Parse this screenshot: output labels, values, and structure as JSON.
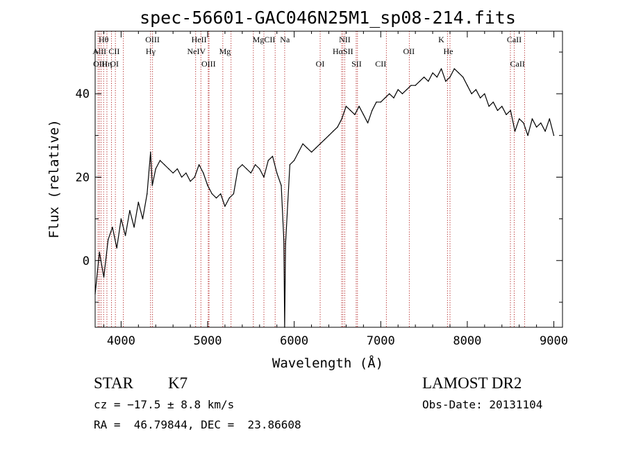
{
  "chart_data": {
    "type": "line",
    "title": "spec-56601-GAC046N25M1_sp08-214.fits",
    "xlabel": "Wavelength (Å)",
    "ylabel": "Flux (relative)",
    "xlim": [
      3700,
      9100
    ],
    "ylim": [
      -16,
      55
    ],
    "x_ticks": [
      4000,
      5000,
      6000,
      7000,
      8000,
      9000
    ],
    "y_ticks": [
      0,
      20,
      40
    ],
    "grid": false,
    "line_color": "#000000",
    "marker_color": "#b22222",
    "series": [
      {
        "x": [
          3700,
          3750,
          3800,
          3850,
          3900,
          3950,
          4000,
          4050,
          4100,
          4150,
          4200,
          4250,
          4300,
          4340,
          4360,
          4400,
          4450,
          4500,
          4550,
          4600,
          4650,
          4700,
          4750,
          4800,
          4850,
          4900,
          4950,
          5000,
          5050,
          5100,
          5150,
          5200,
          5250,
          5300,
          5350,
          5400,
          5450,
          5500,
          5550,
          5600,
          5650,
          5700,
          5750,
          5800,
          5850,
          5880,
          5890,
          5900,
          5950,
          6000,
          6050,
          6100,
          6150,
          6200,
          6250,
          6300,
          6350,
          6400,
          6450,
          6500,
          6550,
          6600,
          6650,
          6700,
          6750,
          6800,
          6850,
          6900,
          6950,
          7000,
          7050,
          7100,
          7150,
          7200,
          7250,
          7300,
          7350,
          7400,
          7450,
          7500,
          7550,
          7600,
          7650,
          7700,
          7750,
          7800,
          7850,
          7900,
          7950,
          8000,
          8050,
          8100,
          8150,
          8200,
          8250,
          8300,
          8350,
          8400,
          8450,
          8500,
          8550,
          8600,
          8650,
          8700,
          8750,
          8800,
          8850,
          8900,
          8950,
          9000
        ],
        "y": [
          -8,
          2,
          -4,
          5,
          8,
          3,
          10,
          6,
          12,
          8,
          14,
          10,
          16,
          26,
          18,
          22,
          24,
          23,
          22,
          21,
          22,
          20,
          21,
          19,
          20,
          23,
          21,
          18,
          16,
          15,
          16,
          13,
          15,
          16,
          22,
          23,
          22,
          21,
          23,
          22,
          20,
          24,
          25,
          21,
          18,
          5,
          -16,
          4,
          23,
          24,
          26,
          28,
          27,
          26,
          27,
          28,
          29,
          30,
          31,
          32,
          34,
          37,
          36,
          35,
          37,
          35,
          33,
          36,
          38,
          38,
          39,
          40,
          39,
          41,
          40,
          41,
          42,
          42,
          43,
          44,
          43,
          45,
          44,
          46,
          43,
          44,
          46,
          45,
          44,
          42,
          40,
          41,
          39,
          40,
          37,
          38,
          36,
          37,
          35,
          36,
          31,
          34,
          33,
          30,
          34,
          32,
          33,
          31,
          34,
          30
        ]
      }
    ],
    "line_markers": [
      {
        "row": 0,
        "label": "Hθ",
        "x": 3798
      },
      {
        "row": 1,
        "label": "AlII",
        "x": 3750
      },
      {
        "row": 2,
        "label": "OIII",
        "x": 3760
      },
      {
        "row": 2,
        "label": "Hη",
        "x": 3836
      },
      {
        "row": 1,
        "label": "CII",
        "x": 3920
      },
      {
        "row": 2,
        "label": "OI",
        "x": 3922
      },
      {
        "row": 0,
        "label": "OIII",
        "x": 4363
      },
      {
        "row": 1,
        "label": "Hγ",
        "x": 4341
      },
      {
        "row": 0,
        "label": "HeII",
        "x": 4900
      },
      {
        "row": 1,
        "label": "NeIV",
        "x": 4870
      },
      {
        "row": 2,
        "label": "OIII",
        "x": 5010
      },
      {
        "row": 1,
        "label": "Mg",
        "x": 5200
      },
      {
        "row": 0,
        "label": "MgCII",
        "x": 5650
      },
      {
        "row": 0,
        "label": "Na",
        "x": 5893
      },
      {
        "row": 2,
        "label": "OI",
        "x": 6300
      },
      {
        "row": 0,
        "label": "NII",
        "x": 6584
      },
      {
        "row": 1,
        "label": "HαSII",
        "x": 6563
      },
      {
        "row": 2,
        "label": "SII",
        "x": 6720
      },
      {
        "row": 2,
        "label": "CII",
        "x": 7000
      },
      {
        "row": 1,
        "label": "OII",
        "x": 7325
      },
      {
        "row": 0,
        "label": "K",
        "x": 7699
      },
      {
        "row": 1,
        "label": "He",
        "x": 7780
      },
      {
        "row": 0,
        "label": "CaII",
        "x": 8542
      },
      {
        "row": 2,
        "label": "CaII",
        "x": 8580
      }
    ],
    "marker_lines_x": [
      3734,
      3750,
      3770,
      3798,
      3836,
      3889,
      3934,
      4026,
      4340,
      4363,
      4861,
      4922,
      5007,
      5016,
      5175,
      5270,
      5528,
      5650,
      5780,
      5890,
      6300,
      6548,
      6563,
      6584,
      6716,
      6731,
      7065,
      7330,
      7771,
      7800,
      8498,
      8542,
      8662
    ]
  },
  "info": {
    "class_label": "STAR",
    "subclass": "K7",
    "survey": "LAMOST DR2",
    "cz": "cz = −17.5 ± 8.8 km/s",
    "obs_date": "Obs-Date: 20131104",
    "coords": "RA =  46.79844, DEC =  23.86608"
  }
}
